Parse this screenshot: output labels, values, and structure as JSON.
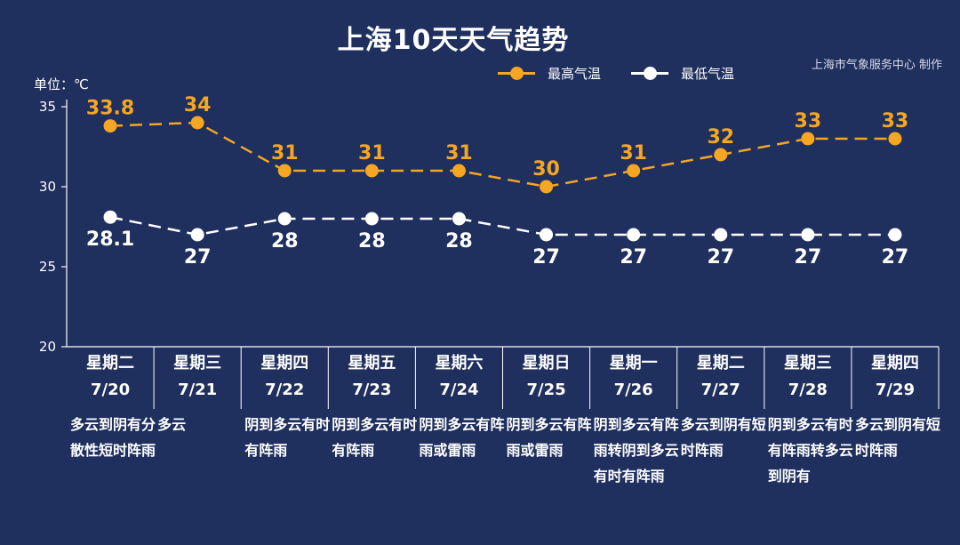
{
  "title": "上海10天天气趋势",
  "source": "上海市气象服务中心 制作",
  "unit_label": "单位：℃",
  "legend": {
    "high": "最高气温",
    "low": "最低气温"
  },
  "colors": {
    "background": "#1f2f5e",
    "high": "#f5a623",
    "low": "#ffffff"
  },
  "chart_data": {
    "type": "line",
    "ylim": [
      20,
      35
    ],
    "yticks": [
      20,
      25,
      30,
      35
    ],
    "categories": [
      "7/20",
      "7/21",
      "7/22",
      "7/23",
      "7/24",
      "7/25",
      "7/26",
      "7/27",
      "7/28",
      "7/29"
    ],
    "series": [
      {
        "name": "最高气温",
        "values": [
          33.8,
          34,
          31,
          31,
          31,
          30,
          31,
          32,
          33,
          33
        ]
      },
      {
        "name": "最低气温",
        "values": [
          28.1,
          27,
          28,
          28,
          28,
          27,
          27,
          27,
          27,
          27
        ]
      }
    ]
  },
  "days": [
    {
      "weekday": "星期二",
      "date": "7/20",
      "weather": "多云到阴有分散性短时阵雨"
    },
    {
      "weekday": "星期三",
      "date": "7/21",
      "weather": "多云"
    },
    {
      "weekday": "星期四",
      "date": "7/22",
      "weather": "阴到多云有时有阵雨"
    },
    {
      "weekday": "星期五",
      "date": "7/23",
      "weather": "阴到多云有时有阵雨"
    },
    {
      "weekday": "星期六",
      "date": "7/24",
      "weather": "阴到多云有阵雨或雷雨"
    },
    {
      "weekday": "星期日",
      "date": "7/25",
      "weather": "阴到多云有阵雨或雷雨"
    },
    {
      "weekday": "星期一",
      "date": "7/26",
      "weather": "阴到多云有阵雨转阴到多云有时有阵雨"
    },
    {
      "weekday": "星期二",
      "date": "7/27",
      "weather": "多云到阴有短时阵雨"
    },
    {
      "weekday": "星期三",
      "date": "7/28",
      "weather": "阴到多云有时有阵雨转多云到阴有"
    },
    {
      "weekday": "星期四",
      "date": "7/29",
      "weather": "多云到阴有短时阵雨"
    }
  ]
}
